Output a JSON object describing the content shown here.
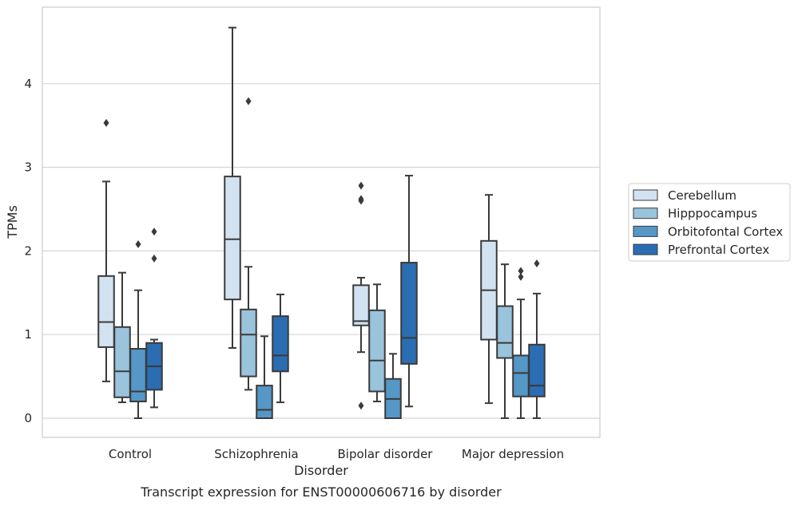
{
  "chart_data": {
    "type": "boxplot",
    "caption": "Transcript expression for ENST00000606716 by disorder",
    "xlabel": "Disorder",
    "ylabel": "TPMs",
    "categories": [
      "Control",
      "Schizophrenia",
      "Bipolar disorder",
      "Major depression"
    ],
    "yticks": [
      0,
      1,
      2,
      3,
      4
    ],
    "ylim": [
      -0.23,
      4.9
    ],
    "grid": "horizontal",
    "legend_position": "right",
    "series": [
      {
        "name": "Cerebellum",
        "color": "#d3e2f0",
        "boxes": [
          {
            "whisker_low": 0.44,
            "q1": 0.85,
            "median": 1.15,
            "q3": 1.7,
            "whisker_high": 2.83,
            "outliers": [
              3.53
            ]
          },
          {
            "whisker_low": 0.84,
            "q1": 1.42,
            "median": 2.14,
            "q3": 2.89,
            "whisker_high": 4.67,
            "outliers": []
          },
          {
            "whisker_low": 0.79,
            "q1": 1.11,
            "median": 1.16,
            "q3": 1.59,
            "whisker_high": 1.68,
            "outliers": [
              2.78,
              2.62,
              2.6,
              0.15
            ]
          },
          {
            "whisker_low": 0.18,
            "q1": 0.94,
            "median": 1.53,
            "q3": 2.12,
            "whisker_high": 2.67,
            "outliers": []
          }
        ]
      },
      {
        "name": "Hipppocampus",
        "color": "#9ac3dc",
        "boxes": [
          {
            "whisker_low": 0.19,
            "q1": 0.25,
            "median": 0.56,
            "q3": 1.09,
            "whisker_high": 1.74,
            "outliers": []
          },
          {
            "whisker_low": 0.34,
            "q1": 0.5,
            "median": 1.0,
            "q3": 1.3,
            "whisker_high": 1.81,
            "outliers": [
              3.79
            ]
          },
          {
            "whisker_low": 0.2,
            "q1": 0.32,
            "median": 0.69,
            "q3": 1.29,
            "whisker_high": 1.6,
            "outliers": []
          },
          {
            "whisker_low": 0.0,
            "q1": 0.72,
            "median": 0.9,
            "q3": 1.34,
            "whisker_high": 1.84,
            "outliers": []
          }
        ]
      },
      {
        "name": "Orbitofontal Cortex",
        "color": "#5597c6",
        "boxes": [
          {
            "whisker_low": 0.0,
            "q1": 0.2,
            "median": 0.32,
            "q3": 0.83,
            "whisker_high": 1.53,
            "outliers": [
              2.08
            ]
          },
          {
            "whisker_low": 0.0,
            "q1": 0.0,
            "median": 0.1,
            "q3": 0.39,
            "whisker_high": 0.98,
            "outliers": []
          },
          {
            "whisker_low": 0.0,
            "q1": 0.0,
            "median": 0.23,
            "q3": 0.47,
            "whisker_high": 0.77,
            "outliers": []
          },
          {
            "whisker_low": 0.0,
            "q1": 0.26,
            "median": 0.54,
            "q3": 0.75,
            "whisker_high": 1.42,
            "outliers": [
              1.76,
              1.69
            ]
          }
        ]
      },
      {
        "name": "Prefrontal Cortex",
        "color": "#2a6db2",
        "boxes": [
          {
            "whisker_low": 0.13,
            "q1": 0.34,
            "median": 0.62,
            "q3": 0.9,
            "whisker_high": 0.94,
            "outliers": [
              2.23,
              1.91
            ]
          },
          {
            "whisker_low": 0.19,
            "q1": 0.56,
            "median": 0.75,
            "q3": 1.22,
            "whisker_high": 1.48,
            "outliers": []
          },
          {
            "whisker_low": 0.14,
            "q1": 0.65,
            "median": 0.96,
            "q3": 1.86,
            "whisker_high": 2.9,
            "outliers": []
          },
          {
            "whisker_low": 0.0,
            "q1": 0.26,
            "median": 0.39,
            "q3": 0.88,
            "whisker_high": 1.49,
            "outliers": [
              1.85
            ]
          }
        ]
      }
    ]
  }
}
